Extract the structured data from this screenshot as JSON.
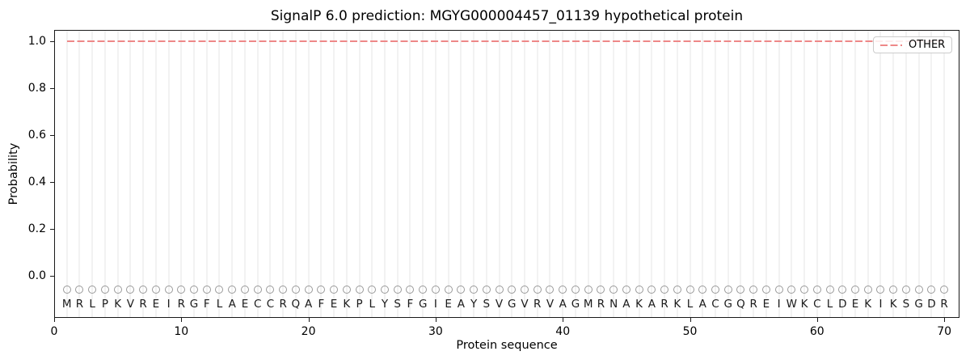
{
  "figure": {
    "title": "SignalP 6.0 prediction: MGYG000004457_01139 hypothetical protein",
    "xlabel": "Protein sequence",
    "ylabel": "Probability"
  },
  "legend": {
    "position": "upper right",
    "entries": [
      {
        "label": "OTHER",
        "color": "#ee8888",
        "line_style": "dashed"
      }
    ]
  },
  "chart_data": {
    "type": "line",
    "title": "SignalP 6.0 prediction: MGYG000004457_01139 hypothetical protein",
    "xlabel": "Protein sequence",
    "ylabel": "Probability",
    "xlim": [
      0,
      71.2
    ],
    "ylim": [
      -0.18,
      1.05
    ],
    "xticks": [
      0,
      10,
      20,
      30,
      40,
      50,
      60,
      70
    ],
    "ytick_labels": [
      "0.0",
      "0.2",
      "0.4",
      "0.6",
      "0.8",
      "1.0"
    ],
    "grid": "vertical gridline at every residue position, no horizontal gridlines",
    "legend_position": "upper right",
    "sequence": "MRLPKVREIRGFLAECCRQAFEKPLYSFGIEAYSVGVRVAGMRNAKARKLACGQREIWKCLDEKIKSGDR",
    "series": [
      {
        "name": "OTHER",
        "color": "#ee8888",
        "style": "dashed",
        "x_range": [
          1,
          70
        ],
        "values": [
          1.0,
          1.0,
          1.0,
          1.0,
          1.0,
          1.0,
          1.0,
          1.0,
          1.0,
          1.0,
          1.0,
          1.0,
          1.0,
          1.0,
          1.0,
          1.0,
          1.0,
          1.0,
          1.0,
          1.0,
          1.0,
          1.0,
          1.0,
          1.0,
          1.0,
          1.0,
          1.0,
          1.0,
          1.0,
          1.0,
          1.0,
          1.0,
          1.0,
          1.0,
          1.0,
          1.0,
          1.0,
          1.0,
          1.0,
          1.0,
          1.0,
          1.0,
          1.0,
          1.0,
          1.0,
          1.0,
          1.0,
          1.0,
          1.0,
          1.0,
          1.0,
          1.0,
          1.0,
          1.0,
          1.0,
          1.0,
          1.0,
          1.0,
          1.0,
          1.0,
          1.0,
          1.0,
          1.0,
          1.0,
          1.0,
          1.0,
          1.0,
          1.0,
          1.0,
          1.0
        ]
      }
    ],
    "residue_markers": {
      "symbol": "open-circle",
      "y": -0.06
    },
    "residue_letters_y": -0.122
  },
  "colors": {
    "line_other": "#ee8888",
    "grid": "#f2f2f2",
    "marker_outline": "#9a9a9a",
    "text": "#1a1a1a",
    "frame": "#1a1a1a",
    "background": "#ffffff"
  }
}
